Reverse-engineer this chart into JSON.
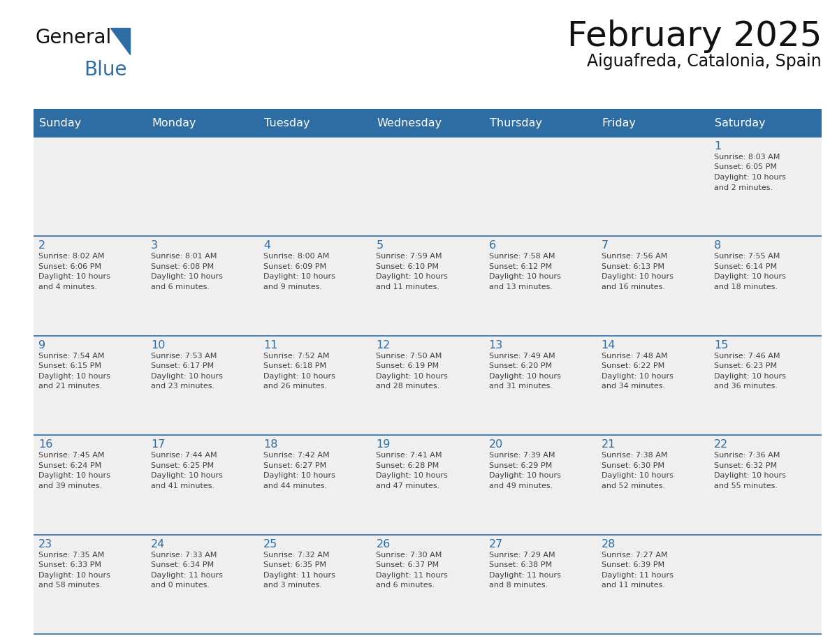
{
  "title": "February 2025",
  "subtitle": "Aiguafreda, Catalonia, Spain",
  "header_bg_color": "#2E6DA4",
  "header_text_color": "#FFFFFF",
  "cell_bg_color": "#EFEFEF",
  "border_color": "#2E6DA4",
  "day_text_color": "#2E6DA4",
  "info_text_color": "#404040",
  "weekdays": [
    "Sunday",
    "Monday",
    "Tuesday",
    "Wednesday",
    "Thursday",
    "Friday",
    "Saturday"
  ],
  "days": [
    {
      "day": 1,
      "col": 6,
      "row": 0,
      "sunrise": "8:03 AM",
      "sunset": "6:05 PM",
      "daylight_h": "10 hours",
      "daylight_m": "and 2 minutes."
    },
    {
      "day": 2,
      "col": 0,
      "row": 1,
      "sunrise": "8:02 AM",
      "sunset": "6:06 PM",
      "daylight_h": "10 hours",
      "daylight_m": "and 4 minutes."
    },
    {
      "day": 3,
      "col": 1,
      "row": 1,
      "sunrise": "8:01 AM",
      "sunset": "6:08 PM",
      "daylight_h": "10 hours",
      "daylight_m": "and 6 minutes."
    },
    {
      "day": 4,
      "col": 2,
      "row": 1,
      "sunrise": "8:00 AM",
      "sunset": "6:09 PM",
      "daylight_h": "10 hours",
      "daylight_m": "and 9 minutes."
    },
    {
      "day": 5,
      "col": 3,
      "row": 1,
      "sunrise": "7:59 AM",
      "sunset": "6:10 PM",
      "daylight_h": "10 hours",
      "daylight_m": "and 11 minutes."
    },
    {
      "day": 6,
      "col": 4,
      "row": 1,
      "sunrise": "7:58 AM",
      "sunset": "6:12 PM",
      "daylight_h": "10 hours",
      "daylight_m": "and 13 minutes."
    },
    {
      "day": 7,
      "col": 5,
      "row": 1,
      "sunrise": "7:56 AM",
      "sunset": "6:13 PM",
      "daylight_h": "10 hours",
      "daylight_m": "and 16 minutes."
    },
    {
      "day": 8,
      "col": 6,
      "row": 1,
      "sunrise": "7:55 AM",
      "sunset": "6:14 PM",
      "daylight_h": "10 hours",
      "daylight_m": "and 18 minutes."
    },
    {
      "day": 9,
      "col": 0,
      "row": 2,
      "sunrise": "7:54 AM",
      "sunset": "6:15 PM",
      "daylight_h": "10 hours",
      "daylight_m": "and 21 minutes."
    },
    {
      "day": 10,
      "col": 1,
      "row": 2,
      "sunrise": "7:53 AM",
      "sunset": "6:17 PM",
      "daylight_h": "10 hours",
      "daylight_m": "and 23 minutes."
    },
    {
      "day": 11,
      "col": 2,
      "row": 2,
      "sunrise": "7:52 AM",
      "sunset": "6:18 PM",
      "daylight_h": "10 hours",
      "daylight_m": "and 26 minutes."
    },
    {
      "day": 12,
      "col": 3,
      "row": 2,
      "sunrise": "7:50 AM",
      "sunset": "6:19 PM",
      "daylight_h": "10 hours",
      "daylight_m": "and 28 minutes."
    },
    {
      "day": 13,
      "col": 4,
      "row": 2,
      "sunrise": "7:49 AM",
      "sunset": "6:20 PM",
      "daylight_h": "10 hours",
      "daylight_m": "and 31 minutes."
    },
    {
      "day": 14,
      "col": 5,
      "row": 2,
      "sunrise": "7:48 AM",
      "sunset": "6:22 PM",
      "daylight_h": "10 hours",
      "daylight_m": "and 34 minutes."
    },
    {
      "day": 15,
      "col": 6,
      "row": 2,
      "sunrise": "7:46 AM",
      "sunset": "6:23 PM",
      "daylight_h": "10 hours",
      "daylight_m": "and 36 minutes."
    },
    {
      "day": 16,
      "col": 0,
      "row": 3,
      "sunrise": "7:45 AM",
      "sunset": "6:24 PM",
      "daylight_h": "10 hours",
      "daylight_m": "and 39 minutes."
    },
    {
      "day": 17,
      "col": 1,
      "row": 3,
      "sunrise": "7:44 AM",
      "sunset": "6:25 PM",
      "daylight_h": "10 hours",
      "daylight_m": "and 41 minutes."
    },
    {
      "day": 18,
      "col": 2,
      "row": 3,
      "sunrise": "7:42 AM",
      "sunset": "6:27 PM",
      "daylight_h": "10 hours",
      "daylight_m": "and 44 minutes."
    },
    {
      "day": 19,
      "col": 3,
      "row": 3,
      "sunrise": "7:41 AM",
      "sunset": "6:28 PM",
      "daylight_h": "10 hours",
      "daylight_m": "and 47 minutes."
    },
    {
      "day": 20,
      "col": 4,
      "row": 3,
      "sunrise": "7:39 AM",
      "sunset": "6:29 PM",
      "daylight_h": "10 hours",
      "daylight_m": "and 49 minutes."
    },
    {
      "day": 21,
      "col": 5,
      "row": 3,
      "sunrise": "7:38 AM",
      "sunset": "6:30 PM",
      "daylight_h": "10 hours",
      "daylight_m": "and 52 minutes."
    },
    {
      "day": 22,
      "col": 6,
      "row": 3,
      "sunrise": "7:36 AM",
      "sunset": "6:32 PM",
      "daylight_h": "10 hours",
      "daylight_m": "and 55 minutes."
    },
    {
      "day": 23,
      "col": 0,
      "row": 4,
      "sunrise": "7:35 AM",
      "sunset": "6:33 PM",
      "daylight_h": "10 hours",
      "daylight_m": "and 58 minutes."
    },
    {
      "day": 24,
      "col": 1,
      "row": 4,
      "sunrise": "7:33 AM",
      "sunset": "6:34 PM",
      "daylight_h": "11 hours",
      "daylight_m": "and 0 minutes."
    },
    {
      "day": 25,
      "col": 2,
      "row": 4,
      "sunrise": "7:32 AM",
      "sunset": "6:35 PM",
      "daylight_h": "11 hours",
      "daylight_m": "and 3 minutes."
    },
    {
      "day": 26,
      "col": 3,
      "row": 4,
      "sunrise": "7:30 AM",
      "sunset": "6:37 PM",
      "daylight_h": "11 hours",
      "daylight_m": "and 6 minutes."
    },
    {
      "day": 27,
      "col": 4,
      "row": 4,
      "sunrise": "7:29 AM",
      "sunset": "6:38 PM",
      "daylight_h": "11 hours",
      "daylight_m": "and 8 minutes."
    },
    {
      "day": 28,
      "col": 5,
      "row": 4,
      "sunrise": "7:27 AM",
      "sunset": "6:39 PM",
      "daylight_h": "11 hours",
      "daylight_m": "and 11 minutes."
    }
  ]
}
